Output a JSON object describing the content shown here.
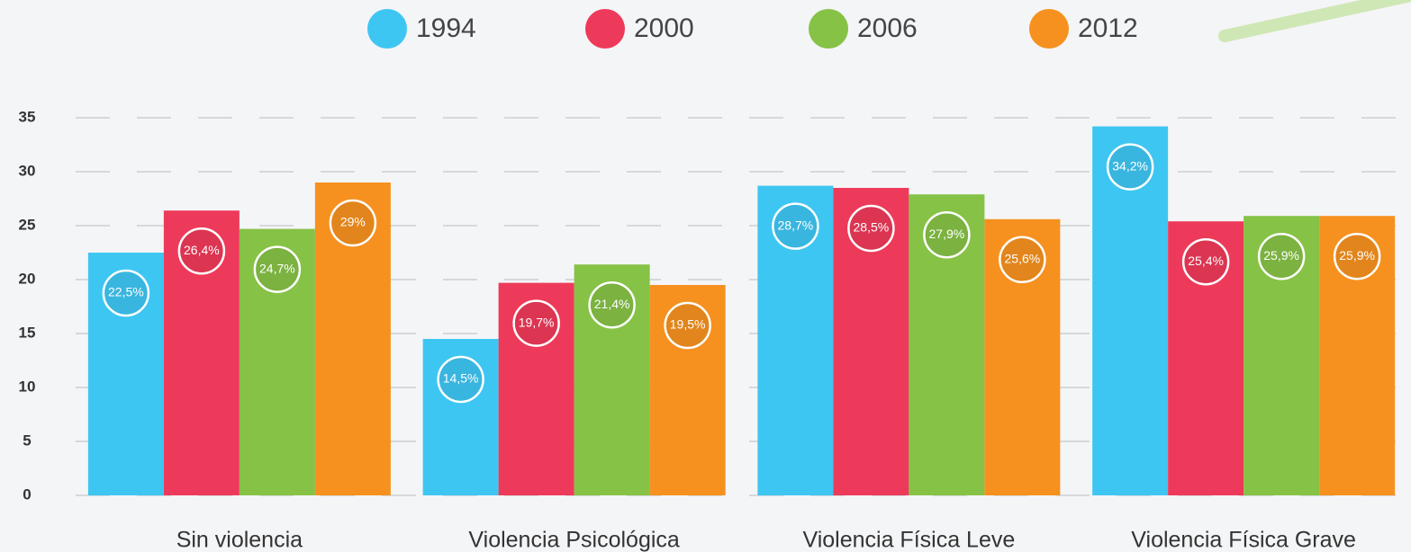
{
  "chart_data": {
    "type": "bar",
    "categories": [
      "Sin violencia",
      "Violencia Psicológica",
      "Violencia Física Leve",
      "Violencia Física Grave"
    ],
    "series": [
      {
        "name": "1994",
        "color": "#3ec6f2",
        "values": [
          22.5,
          14.5,
          28.7,
          34.2
        ],
        "value_labels": [
          "22,5%",
          "14,5%",
          "28,7%",
          "34,2%"
        ]
      },
      {
        "name": "2000",
        "color": "#ee3a5a",
        "values": [
          26.4,
          19.7,
          28.5,
          25.4
        ],
        "value_labels": [
          "26,4%",
          "19,7%",
          "28,5%",
          "25,4%"
        ]
      },
      {
        "name": "2006",
        "color": "#86c246",
        "values": [
          24.7,
          21.4,
          27.9,
          25.9
        ],
        "value_labels": [
          "24,7%",
          "21,4%",
          "27,9%",
          "25,9%"
        ]
      },
      {
        "name": "2012",
        "color": "#f6911f",
        "values": [
          29,
          19.5,
          25.6,
          25.9
        ],
        "value_labels": [
          "29%",
          "19,5%",
          "25,6%",
          "25,9%"
        ]
      }
    ],
    "ylim": [
      0,
      35
    ],
    "yticks": [
      0,
      5,
      10,
      15,
      20,
      25,
      30,
      35
    ],
    "grid": true,
    "legend": "top"
  }
}
